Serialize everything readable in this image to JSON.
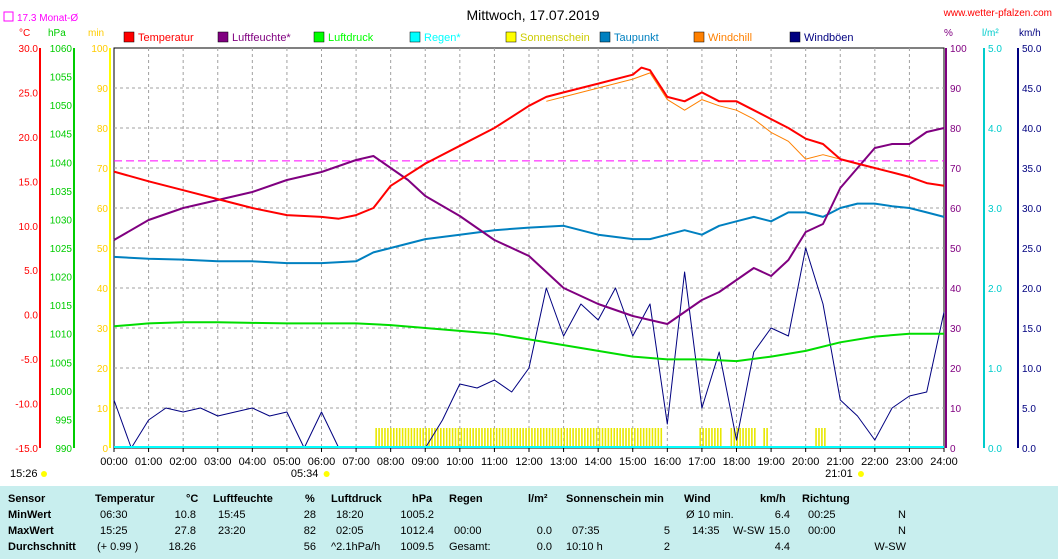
{
  "chart_data": {
    "type": "line",
    "title": "Mittwoch, 17.07.2019",
    "source_label": "www.wetter-pfalzen.com",
    "month_avg_label": "17.3 Monat-Ø",
    "month_avg_temp": 17.3,
    "axes_units": {
      "temp": "°C",
      "pressure": "hPa",
      "minutes": "min",
      "percent": "%",
      "rain": "l/m²",
      "wind": "km/h"
    },
    "left_axes": {
      "temperature": {
        "ticks": [
          "30.0",
          "25.0",
          "20.0",
          "15.0",
          "10.0",
          "5.0",
          "0.0",
          "-5.0",
          "-10.0",
          "-15.0"
        ],
        "range": [
          -15,
          30
        ],
        "color": "#ff0000"
      },
      "pressure": {
        "ticks": [
          "1060",
          "1055",
          "1050",
          "1045",
          "1040",
          "1035",
          "1030",
          "1025",
          "1020",
          "1015",
          "1010",
          "1005",
          "1000",
          "995",
          "990"
        ],
        "range": [
          990,
          1060
        ],
        "color": "#00cc00"
      },
      "minutes": {
        "ticks": [
          "100",
          "90",
          "80",
          "70",
          "60",
          "50",
          "40",
          "30",
          "20",
          "10",
          "0"
        ],
        "range": [
          0,
          100
        ],
        "color": "#ffff00"
      }
    },
    "right_axes": {
      "percent": {
        "ticks": [
          "100",
          "90",
          "80",
          "70",
          "60",
          "50",
          "40",
          "30",
          "20",
          "10",
          "0"
        ],
        "range": [
          0,
          100
        ],
        "color": "#800080"
      },
      "rain": {
        "ticks": [
          "5.0",
          "4.0",
          "3.0",
          "2.0",
          "1.0",
          "0.0"
        ],
        "range": [
          0,
          5
        ],
        "color": "#00cccc"
      },
      "wind": {
        "ticks": [
          "50.0",
          "45.0",
          "40.0",
          "35.0",
          "30.0",
          "25.0",
          "20.0",
          "15.0",
          "10.0",
          "5.0",
          "0.0"
        ],
        "range": [
          0,
          50
        ],
        "color": "#000080"
      }
    },
    "x_ticks": [
      "00:00",
      "01:00",
      "02:00",
      "03:00",
      "04:00",
      "05:00",
      "06:00",
      "07:00",
      "08:00",
      "09:00",
      "10:00",
      "11:00",
      "12:00",
      "13:00",
      "14:00",
      "15:00",
      "16:00",
      "17:00",
      "18:00",
      "19:00",
      "20:00",
      "21:00",
      "22:00",
      "23:00",
      "24:00"
    ],
    "xlim": [
      0,
      24
    ],
    "sunrise": "05:34",
    "sunset": "21:01",
    "sunrise_h": 5.57,
    "sunset_h": 21.02,
    "current_time": "15:26",
    "grid": true,
    "legend_position": "top",
    "legend": [
      {
        "name": "Temperatur",
        "color": "#ff0000"
      },
      {
        "name": "Luftfeuchte*",
        "color": "#800080"
      },
      {
        "name": "Luftdruck",
        "color": "#00ff00"
      },
      {
        "name": "Regen*",
        "color": "#00ffff"
      },
      {
        "name": "Sonnenschein",
        "color": "#ffff00"
      },
      {
        "name": "Taupunkt",
        "color": "#0080c0"
      },
      {
        "name": "Windchill",
        "color": "#ff8000"
      },
      {
        "name": "Windböen",
        "color": "#000080"
      }
    ],
    "series": [
      {
        "name": "Temperatur",
        "axis": "temperature",
        "color": "#ff0000",
        "x": [
          0,
          1,
          2,
          3,
          4,
          5,
          6,
          6.5,
          7,
          7.5,
          8,
          9,
          10,
          11,
          12,
          12.5,
          13,
          14,
          15,
          15.25,
          15.5,
          16,
          16.5,
          17,
          17.5,
          18,
          18.5,
          19,
          19.5,
          20,
          20.5,
          21,
          21.5,
          22,
          22.5,
          23,
          23.5,
          24
        ],
        "y": [
          16.1,
          15.0,
          14.0,
          13.0,
          12.0,
          11.2,
          11.0,
          10.8,
          11.2,
          12.0,
          14.5,
          17.0,
          19.0,
          21.0,
          23.5,
          24.5,
          25.0,
          26.0,
          27.0,
          27.8,
          27.5,
          24.5,
          24.0,
          25.0,
          24.0,
          24.0,
          23.0,
          22.0,
          21.0,
          19.8,
          19.2,
          17.5,
          17.0,
          16.5,
          16.0,
          15.5,
          14.8,
          14.5
        ]
      },
      {
        "name": "Windchill",
        "axis": "temperature",
        "color": "#ff8000",
        "x": [
          12.5,
          13,
          14,
          15,
          15.5,
          16,
          16.5,
          17,
          17.5,
          18,
          18.5,
          19,
          19.5,
          20,
          20.5,
          21
        ],
        "y": [
          24.0,
          24.5,
          25.5,
          26.5,
          27.2,
          24.2,
          23.0,
          24.2,
          23.5,
          23.0,
          22.0,
          20.5,
          19.5,
          17.5,
          18.0,
          17.5
        ]
      },
      {
        "name": "Luftfeuchte*",
        "axis": "percent",
        "color": "#800080",
        "x": [
          0,
          1,
          2,
          3,
          4,
          5,
          6,
          7,
          7.5,
          8,
          8.5,
          9,
          10,
          11,
          12,
          13,
          14,
          15,
          15.5,
          16,
          16.5,
          17,
          17.5,
          18,
          18.5,
          19,
          19.5,
          20,
          20.5,
          21,
          21.5,
          22,
          22.5,
          23,
          23.5,
          24
        ],
        "y": [
          52,
          57,
          60,
          62,
          64,
          67,
          69,
          72,
          73,
          70,
          67,
          63,
          58,
          52,
          48,
          40,
          36,
          33,
          32,
          31,
          34,
          37,
          39,
          42,
          45,
          43,
          47,
          54,
          56,
          65,
          70,
          75,
          76,
          76,
          79,
          80
        ]
      },
      {
        "name": "Luftdruck",
        "axis": "pressure",
        "color": "#00dd00",
        "x": [
          0,
          1,
          2,
          3,
          4,
          5,
          6,
          7,
          8,
          9,
          10,
          11,
          12,
          13,
          14,
          15,
          16,
          17,
          18,
          19,
          20,
          21,
          22,
          23,
          24
        ],
        "y": [
          1011.3,
          1011.8,
          1012.0,
          1012.0,
          1011.9,
          1011.8,
          1011.8,
          1011.8,
          1011.5,
          1011.0,
          1010.5,
          1010.0,
          1009.0,
          1008.0,
          1007.0,
          1006.0,
          1005.5,
          1005.5,
          1005.2,
          1006.0,
          1007.0,
          1008.5,
          1009.5,
          1010.0,
          1010.0
        ]
      },
      {
        "name": "Taupunkt",
        "axis": "temperature",
        "color": "#0080c0",
        "x": [
          0,
          1,
          2,
          3,
          4,
          5,
          6,
          7,
          7.5,
          8,
          9,
          10,
          11,
          12,
          13,
          14,
          15,
          15.5,
          16,
          16.5,
          17,
          17.5,
          18,
          18.5,
          19,
          19.5,
          20,
          20.5,
          21,
          21.5,
          22,
          22.5,
          23,
          23.5,
          24
        ],
        "y": [
          6.5,
          6.3,
          6.2,
          6.0,
          6.0,
          5.8,
          5.8,
          6.0,
          7.0,
          7.5,
          8.5,
          9.0,
          9.5,
          9.8,
          10.0,
          9.0,
          8.5,
          8.5,
          9.0,
          9.5,
          9.0,
          10.0,
          10.5,
          11.0,
          10.5,
          11.5,
          11.5,
          11.0,
          12.0,
          12.5,
          12.5,
          12.2,
          12.0,
          11.5,
          11.0
        ]
      },
      {
        "name": "Windböen",
        "axis": "wind",
        "color": "#000080",
        "x": [
          0,
          0.5,
          1,
          1.5,
          2,
          2.5,
          3,
          3.5,
          4,
          4.5,
          5,
          5.5,
          6,
          6.5,
          7,
          7.5,
          8,
          8.5,
          9,
          9.5,
          10,
          10.5,
          11,
          11.5,
          12,
          12.5,
          13,
          13.5,
          14,
          14.5,
          15,
          15.5,
          16,
          16.5,
          17,
          17.5,
          18,
          18.5,
          19,
          19.5,
          20,
          20.5,
          21,
          21.5,
          22,
          22.5,
          23,
          23.5,
          24
        ],
        "y": [
          6.0,
          0,
          3.5,
          5.0,
          4.5,
          5.0,
          4.0,
          4.5,
          5.0,
          4.0,
          4.5,
          0,
          4.5,
          0,
          0,
          0,
          0,
          0,
          0,
          3.5,
          8.0,
          7.5,
          8.5,
          7.0,
          10.0,
          20.0,
          14.0,
          18.0,
          16.0,
          20.0,
          14.0,
          18.0,
          3.0,
          22.0,
          5.0,
          12.0,
          1.0,
          12.0,
          15.0,
          14.0,
          25.0,
          18.0,
          6.0,
          4.0,
          1.0,
          5.0,
          6.5,
          7.0,
          17.0
        ]
      }
    ],
    "sunshine_intervals": [
      [
        7.58,
        15.9
      ],
      [
        16.95,
        17.55
      ],
      [
        17.85,
        18.6
      ],
      [
        18.8,
        18.9
      ],
      [
        20.3,
        20.6
      ]
    ],
    "sunshine_marker_level_minutes": 5,
    "month_avg_line_color": "#ff00ff"
  },
  "table": {
    "rows": [
      "Sensor",
      "MinWert",
      "MaxWert",
      "Durchschnitt"
    ],
    "temperature": {
      "head": "Temperatur",
      "unit": "°C",
      "min_time": "06:30",
      "min": "10.8",
      "max_time": "15:25",
      "max": "27.8",
      "avg_note": "(+ 0.99 )",
      "avg": "18.26"
    },
    "humidity": {
      "head": "Luftfeuchte",
      "unit": "%",
      "min_time": "15:45",
      "min": "28",
      "max_time": "23:20",
      "max": "82",
      "avg": "56"
    },
    "pressure": {
      "head": "Luftdruck",
      "unit": "hPa",
      "min_time": "18:20",
      "min": "1005.2",
      "max_time": "02:05",
      "max": "1012.4",
      "avg_note": "^2.1hPa/h",
      "avg": "1009.5"
    },
    "rain": {
      "head": "Regen",
      "unit": "l/m²",
      "max_time": "00:00",
      "max": "0.0",
      "avg_note": "Gesamt:",
      "avg": "0.0"
    },
    "sunshine": {
      "head": "Sonnenschein min",
      "max_time": "07:35",
      "max": "5",
      "avg_note": "10:10 h",
      "avg": "2"
    },
    "wind": {
      "head": "Wind",
      "unit": "km/h",
      "min_time": "Ø 10 min.",
      "min": "6.4",
      "max_time": "14:35",
      "max_dir": "W-SW",
      "max": "15.0",
      "avg": "4.4"
    },
    "direction": {
      "head": "Richtung",
      "min_time": "00:25",
      "min": "N",
      "max_time": "00:00",
      "max": "N",
      "avg": "W-SW"
    }
  }
}
